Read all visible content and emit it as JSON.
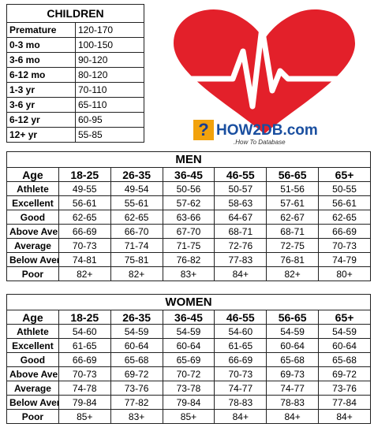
{
  "children": {
    "title": "CHILDREN",
    "rows": [
      [
        "Premature",
        "120-170"
      ],
      [
        "0-3 mo",
        "100-150"
      ],
      [
        "3-6 mo",
        "90-120"
      ],
      [
        "6-12 mo",
        "80-120"
      ],
      [
        "1-3 yr",
        "70-110"
      ],
      [
        "3-6 yr",
        "65-110"
      ],
      [
        "6-12 yr",
        "60-95"
      ],
      [
        "12+ yr",
        "55-85"
      ]
    ]
  },
  "logo": {
    "name": "HOW2DB.com",
    "tagline": ".How To Database"
  },
  "men": {
    "title": "MEN",
    "header": [
      "Age",
      "18-25",
      "26-35",
      "36-45",
      "46-55",
      "56-65",
      "65+"
    ],
    "rows": [
      [
        "Athlete",
        "49-55",
        "49-54",
        "50-56",
        "50-57",
        "51-56",
        "50-55"
      ],
      [
        "Excellent",
        "56-61",
        "55-61",
        "57-62",
        "58-63",
        "57-61",
        "56-61"
      ],
      [
        "Good",
        "62-65",
        "62-65",
        "63-66",
        "64-67",
        "62-67",
        "62-65"
      ],
      [
        "Above Average",
        "66-69",
        "66-70",
        "67-70",
        "68-71",
        "68-71",
        "66-69"
      ],
      [
        "Average",
        "70-73",
        "71-74",
        "71-75",
        "72-76",
        "72-75",
        "70-73"
      ],
      [
        "Below Average",
        "74-81",
        "75-81",
        "76-82",
        "77-83",
        "76-81",
        "74-79"
      ],
      [
        "Poor",
        "82+",
        "82+",
        "83+",
        "84+",
        "82+",
        "80+"
      ]
    ]
  },
  "women": {
    "title": "WOMEN",
    "header": [
      "Age",
      "18-25",
      "26-35",
      "36-45",
      "46-55",
      "56-65",
      "65+"
    ],
    "rows": [
      [
        "Athlete",
        "54-60",
        "54-59",
        "54-59",
        "54-60",
        "54-59",
        "54-59"
      ],
      [
        "Excellent",
        "61-65",
        "60-64",
        "60-64",
        "61-65",
        "60-64",
        "60-64"
      ],
      [
        "Good",
        "66-69",
        "65-68",
        "65-69",
        "66-69",
        "65-68",
        "65-68"
      ],
      [
        "Above Average",
        "70-73",
        "69-72",
        "70-72",
        "70-73",
        "69-73",
        "69-72"
      ],
      [
        "Average",
        "74-78",
        "73-76",
        "73-78",
        "74-77",
        "74-77",
        "73-76"
      ],
      [
        "Below Average",
        "79-84",
        "77-82",
        "79-84",
        "78-83",
        "78-83",
        "77-84"
      ],
      [
        "Poor",
        "85+",
        "83+",
        "85+",
        "84+",
        "84+",
        "84+"
      ]
    ]
  }
}
